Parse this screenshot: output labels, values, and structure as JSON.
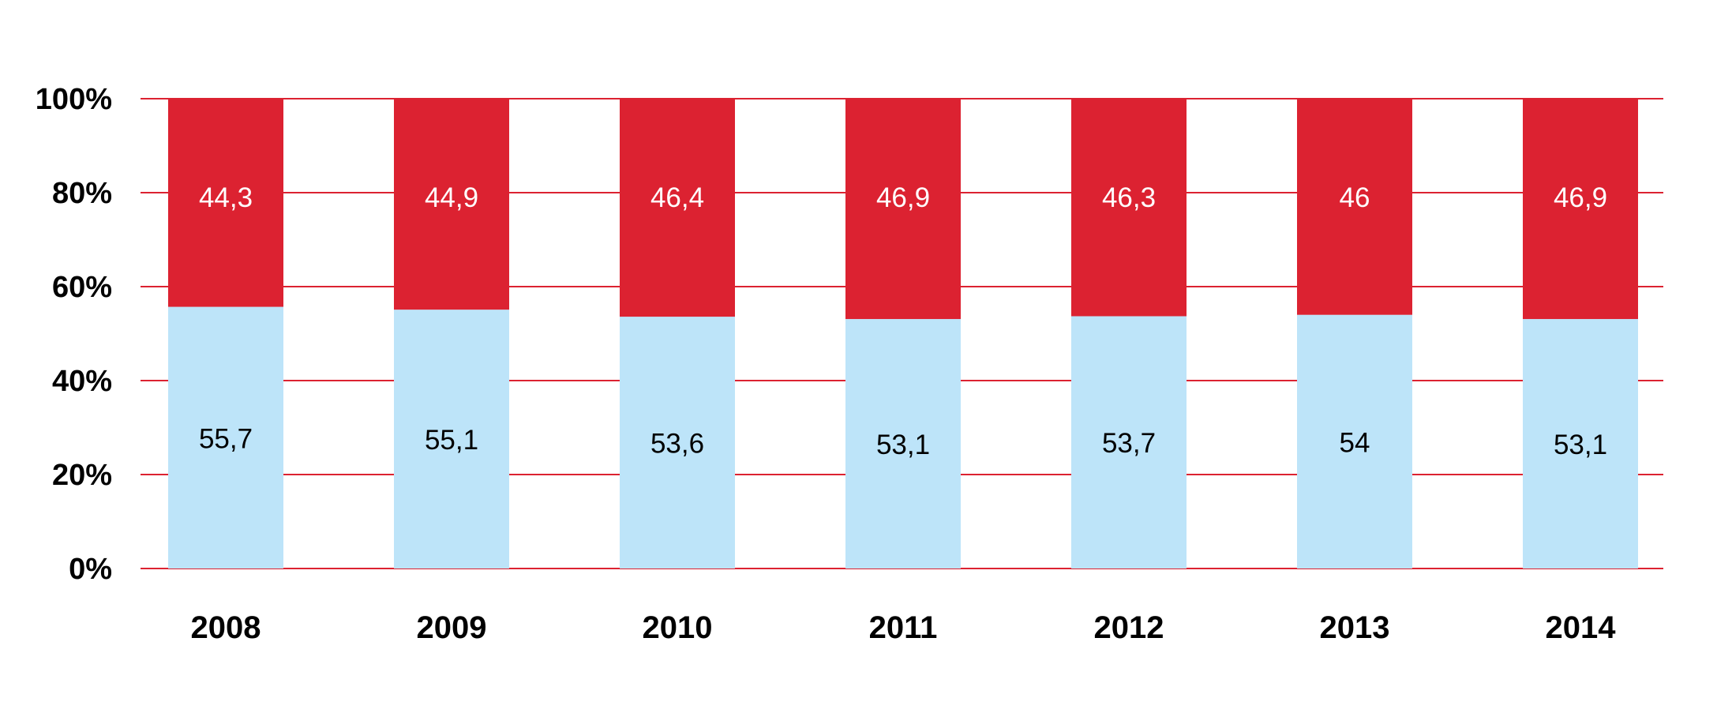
{
  "chart_data": {
    "type": "bar",
    "stacked": true,
    "categories": [
      "2008",
      "2009",
      "2010",
      "2011",
      "2012",
      "2013",
      "2014"
    ],
    "series": [
      {
        "values": [
          55.7,
          55.1,
          53.6,
          53.1,
          53.7,
          54,
          53.1
        ],
        "labels": [
          "55,7",
          "55,1",
          "53,6",
          "53,1",
          "53,7",
          "54",
          "53,1"
        ],
        "color": "#bde4f9"
      },
      {
        "values": [
          44.3,
          44.9,
          46.4,
          46.9,
          46.3,
          46,
          46.9
        ],
        "labels": [
          "44,3",
          "44,9",
          "46,4",
          "46,9",
          "46,3",
          "46",
          "46,9"
        ],
        "color": "#dc2231"
      }
    ],
    "yticks": [
      "0%",
      "20%",
      "40%",
      "60%",
      "80%",
      "100%"
    ],
    "ylim": [
      0,
      100
    ],
    "grid": true,
    "grid_color": "#dc2231",
    "legend": "none"
  }
}
